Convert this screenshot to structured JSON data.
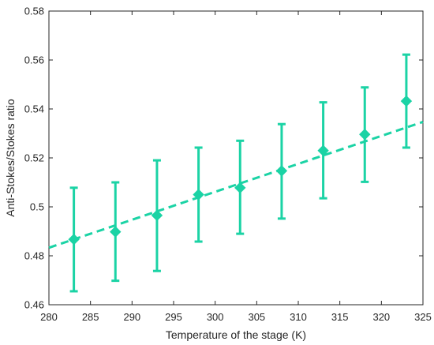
{
  "chart_data": {
    "type": "scatter",
    "xlabel": "Temperature of the stage (K)",
    "ylabel": "Anti-Stokes/Stokes ratio",
    "xlim": [
      280,
      325
    ],
    "ylim": [
      0.46,
      0.58
    ],
    "xticks": [
      "280",
      "285",
      "290",
      "295",
      "300",
      "305",
      "310",
      "315",
      "320",
      "325"
    ],
    "yticks": [
      "0.46",
      "0.48",
      "0.5",
      "0.52",
      "0.54",
      "0.56",
      "0.58"
    ],
    "grid": false,
    "color": "#1bd3a5",
    "series": [
      {
        "marker": "diamond",
        "x": [
          283,
          288,
          293,
          298,
          303,
          308,
          313,
          318,
          323
        ],
        "y": [
          0.4867,
          0.4898,
          0.4965,
          0.505,
          0.5078,
          0.5147,
          0.523,
          0.5296,
          0.5432
        ],
        "err_lower": [
          0.4655,
          0.4698,
          0.4738,
          0.4858,
          0.489,
          0.4952,
          0.5035,
          0.5102,
          0.5242
        ],
        "err_upper": [
          0.5078,
          0.51,
          0.519,
          0.5242,
          0.527,
          0.5338,
          0.5427,
          0.5488,
          0.5622
        ]
      }
    ],
    "fit_line": {
      "style": "dashed",
      "x": [
        280,
        325
      ],
      "y": [
        0.4833,
        0.5347
      ]
    }
  }
}
